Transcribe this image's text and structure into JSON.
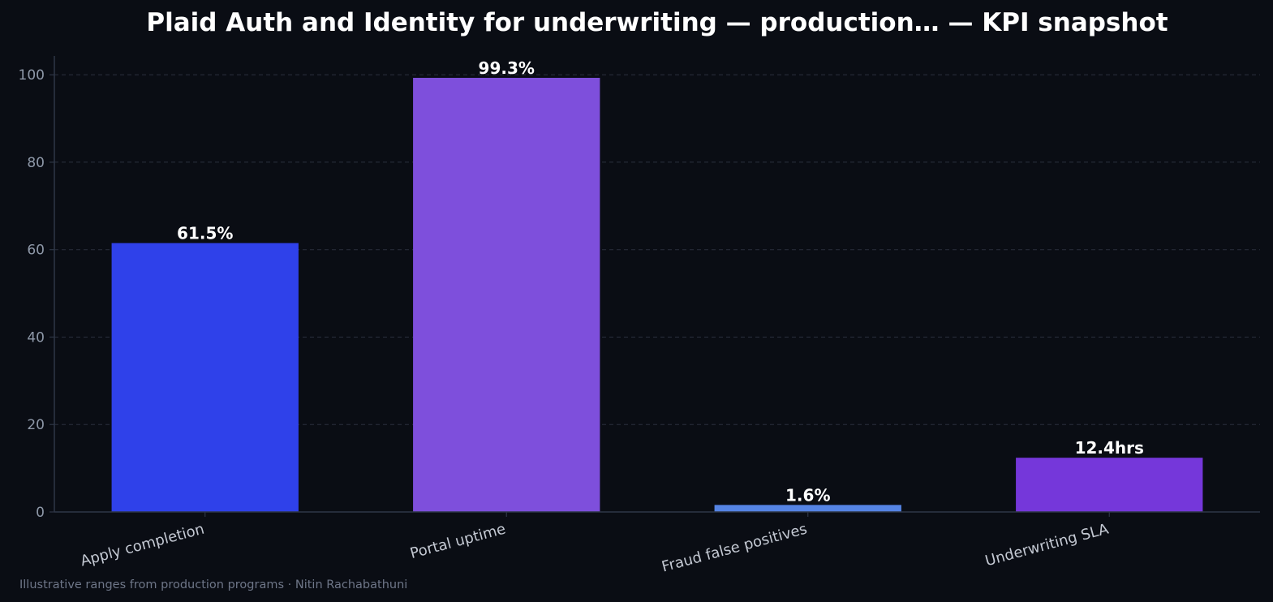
{
  "chart_data": {
    "type": "bar",
    "title": "Plaid Auth and Identity for underwriting — production… — KPI snapshot",
    "categories": [
      "Apply completion",
      "Portal uptime",
      "Fraud false positives",
      "Underwriting SLA"
    ],
    "values": [
      61.5,
      99.3,
      1.6,
      12.4
    ],
    "data_labels": [
      "61.5%",
      "99.3%",
      "1.6%",
      "12.4hrs"
    ],
    "bar_colors": [
      "#2f41ea",
      "#7e4fdc",
      "#5584e4",
      "#7537da"
    ],
    "ylim": [
      0,
      104.3
    ],
    "yticks": [
      0,
      20,
      40,
      60,
      80,
      100
    ],
    "xlabel": "",
    "ylabel": "",
    "grid": true,
    "legend": "none"
  },
  "footnote": "Illustrative ranges from production programs · Nitin Rachabathuni",
  "colors": {
    "background": "#0a0d14",
    "axis": "#2e3646",
    "grid": "#2a2f3d",
    "title": "#ffffff",
    "tick": "#8e98a8",
    "category_label": "#c4c9d3"
  }
}
